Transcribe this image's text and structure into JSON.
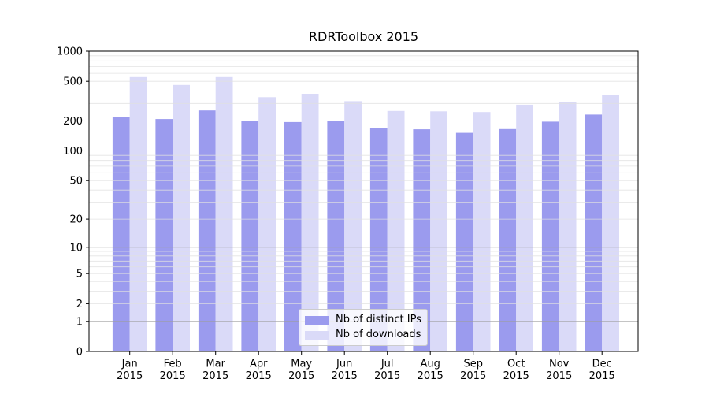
{
  "chart_data": {
    "type": "bar",
    "title": "RDRToolbox 2015",
    "y_scale": "log1p",
    "ylim": [
      0,
      1000
    ],
    "y_ticks": [
      0,
      1,
      2,
      5,
      10,
      20,
      50,
      100,
      200,
      500,
      1000
    ],
    "categories": [
      "Jan",
      "Feb",
      "Mar",
      "Apr",
      "May",
      "Jun",
      "Jul",
      "Aug",
      "Sep",
      "Oct",
      "Nov",
      "Dec"
    ],
    "x_tick_line2": "2015",
    "xlabel": "",
    "ylabel": "",
    "grid": "both",
    "legend_position": "lower center",
    "series": [
      {
        "name": "Nb of distinct IPs",
        "color": "#9b9bee",
        "values": [
          220,
          209,
          255,
          200,
          195,
          202,
          169,
          165,
          152,
          166,
          197,
          232
        ]
      },
      {
        "name": "Nb of downloads",
        "color": "#dadaf8",
        "values": [
          551,
          460,
          551,
          347,
          375,
          316,
          252,
          250,
          246,
          291,
          310,
          367
        ]
      }
    ],
    "colors": {
      "major_grid": "#9e9e9e",
      "minor_grid": "#e0e0e0",
      "axis": "#000000"
    }
  }
}
